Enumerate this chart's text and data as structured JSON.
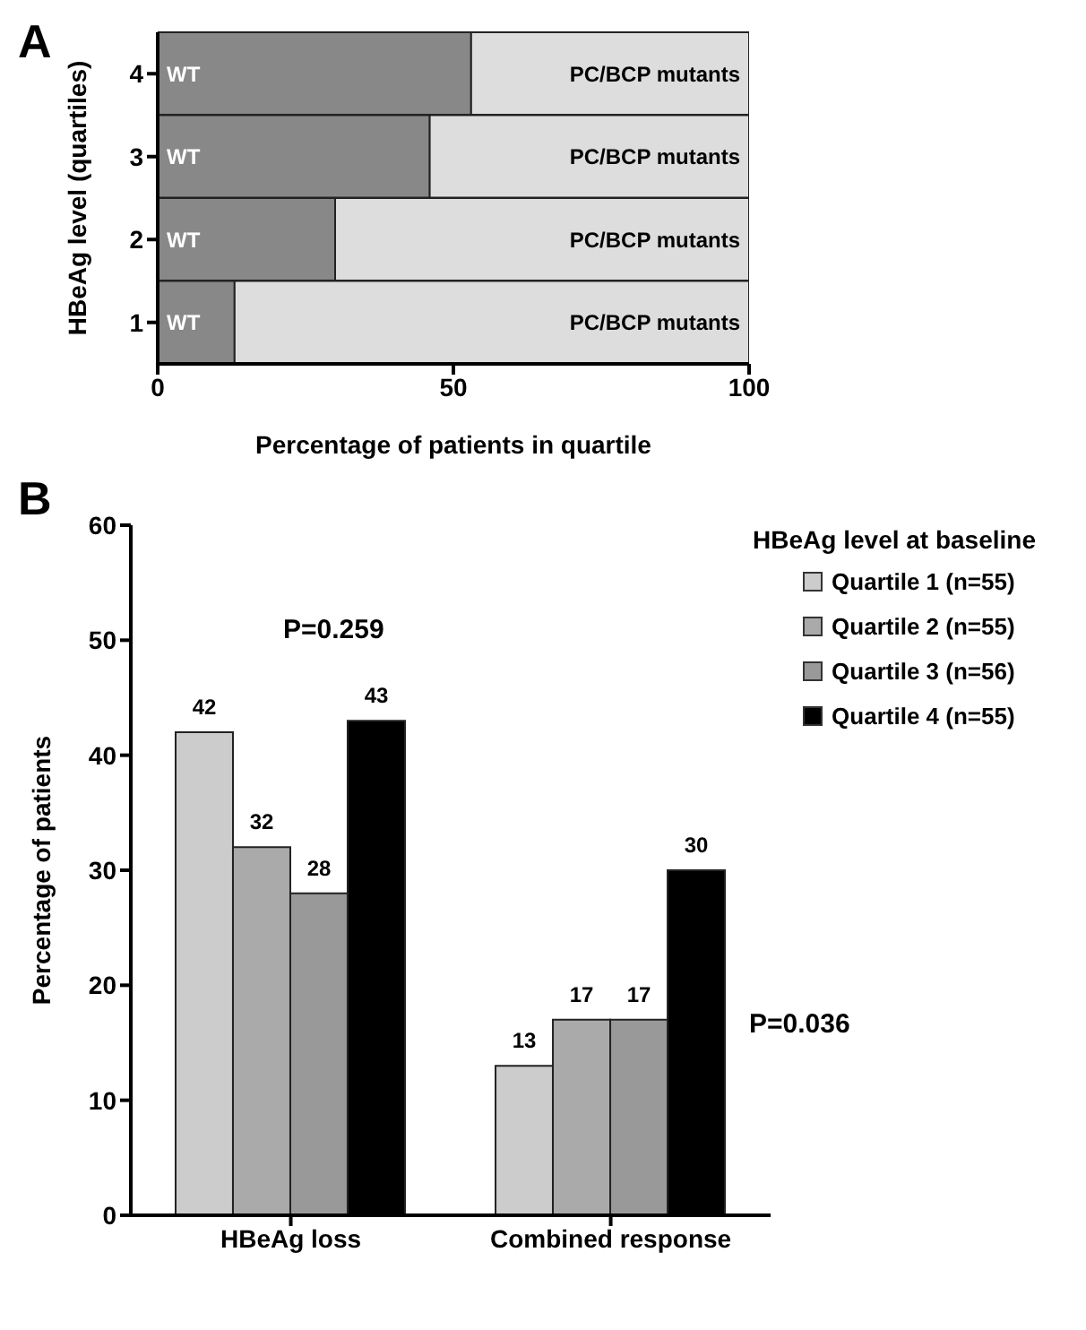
{
  "chart_data": [
    {
      "type": "bar",
      "title": "A",
      "orientation": "horizontal",
      "stacked": true,
      "categories": [
        "4",
        "3",
        "2",
        "1"
      ],
      "ylabel": "HBeAg level (quartiles)",
      "xlabel": "Percentage of patients in quartile",
      "xlim": [
        0,
        100
      ],
      "xticks": [
        0,
        50,
        100
      ],
      "grid": false,
      "legend": false,
      "series": [
        {
          "name": "WT",
          "color": "#888888",
          "values": [
            53,
            46,
            30,
            13
          ]
        },
        {
          "name": "PC/BCP mutants",
          "color": "#dddddd",
          "values": [
            47,
            54,
            70,
            87
          ]
        }
      ]
    },
    {
      "type": "bar",
      "title": "B",
      "categories": [
        "HBeAg loss",
        "Combined response"
      ],
      "ylabel": "Percentage of patients",
      "ylim": [
        0,
        60
      ],
      "yticks": [
        0,
        10,
        20,
        30,
        40,
        50,
        60
      ],
      "grid": false,
      "legend": "top right",
      "legend_title": "HBeAg level at baseline",
      "data_labels": true,
      "annotations": [
        "P=0.259",
        "P=0.036"
      ],
      "series": [
        {
          "name": "Quartile 1 (n=55)",
          "color": "#cccccc",
          "values": [
            42,
            13
          ]
        },
        {
          "name": "Quartile 2 (n=55)",
          "color": "#aaaaaa",
          "values": [
            32,
            17
          ]
        },
        {
          "name": "Quartile 3 (n=56)",
          "color": "#999999",
          "values": [
            28,
            17
          ]
        },
        {
          "name": "Quartile 4 (n=55)",
          "color": "#000000",
          "values": [
            43,
            30
          ]
        }
      ]
    }
  ]
}
